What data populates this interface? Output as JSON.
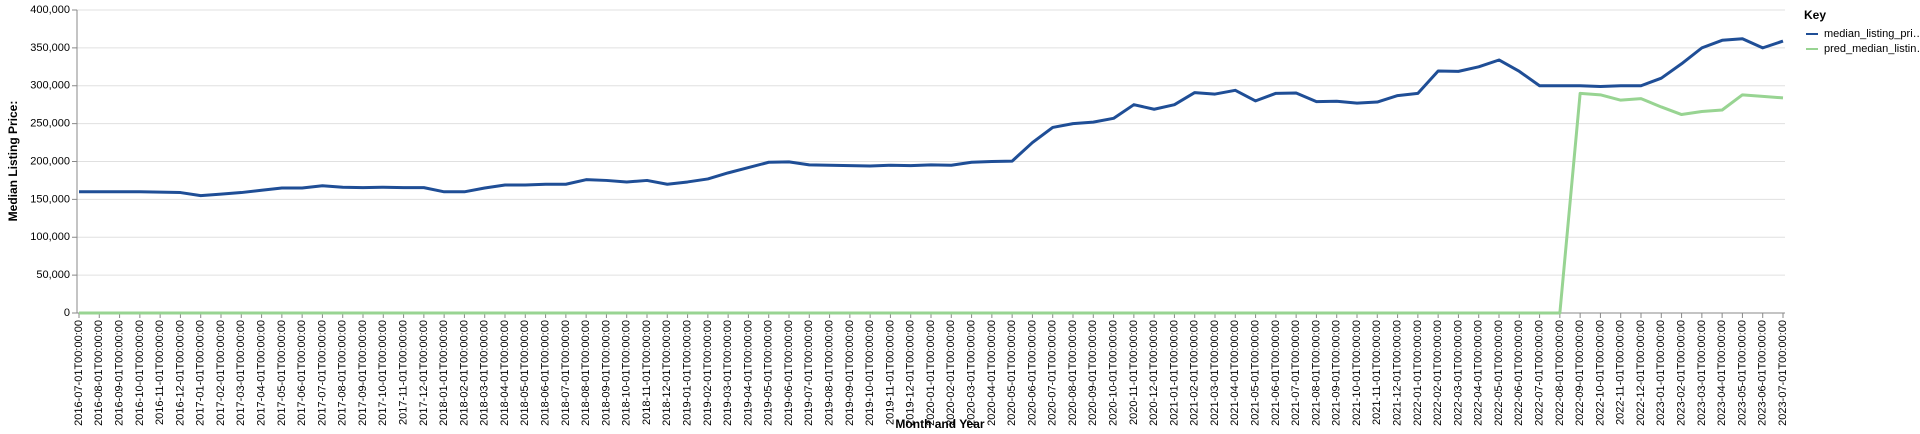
{
  "chart_data": {
    "type": "line",
    "x_label": "Month and Year",
    "y_label": "Median Listing Price:",
    "legend_title": "Key",
    "legend": "right",
    "grid": true,
    "categories": [
      "2016-07-01T00:00:00",
      "2016-08-01T00:00:00",
      "2016-09-01T00:00:00",
      "2016-10-01T00:00:00",
      "2016-11-01T00:00:00",
      "2016-12-01T00:00:00",
      "2017-01-01T00:00:00",
      "2017-02-01T00:00:00",
      "2017-03-01T00:00:00",
      "2017-04-01T00:00:00",
      "2017-05-01T00:00:00",
      "2017-06-01T00:00:00",
      "2017-07-01T00:00:00",
      "2017-08-01T00:00:00",
      "2017-09-01T00:00:00",
      "2017-10-01T00:00:00",
      "2017-11-01T00:00:00",
      "2017-12-01T00:00:00",
      "2018-01-01T00:00:00",
      "2018-02-01T00:00:00",
      "2018-03-01T00:00:00",
      "2018-04-01T00:00:00",
      "2018-05-01T00:00:00",
      "2018-06-01T00:00:00",
      "2018-07-01T00:00:00",
      "2018-08-01T00:00:00",
      "2018-09-01T00:00:00",
      "2018-10-01T00:00:00",
      "2018-11-01T00:00:00",
      "2018-12-01T00:00:00",
      "2019-01-01T00:00:00",
      "2019-02-01T00:00:00",
      "2019-03-01T00:00:00",
      "2019-04-01T00:00:00",
      "2019-05-01T00:00:00",
      "2019-06-01T00:00:00",
      "2019-07-01T00:00:00",
      "2019-08-01T00:00:00",
      "2019-09-01T00:00:00",
      "2019-10-01T00:00:00",
      "2019-11-01T00:00:00",
      "2019-12-01T00:00:00",
      "2020-01-01T00:00:00",
      "2020-02-01T00:00:00",
      "2020-03-01T00:00:00",
      "2020-04-01T00:00:00",
      "2020-05-01T00:00:00",
      "2020-06-01T00:00:00",
      "2020-07-01T00:00:00",
      "2020-08-01T00:00:00",
      "2020-09-01T00:00:00",
      "2020-10-01T00:00:00",
      "2020-11-01T00:00:00",
      "2020-12-01T00:00:00",
      "2021-01-01T00:00:00",
      "2021-02-01T00:00:00",
      "2021-03-01T00:00:00",
      "2021-04-01T00:00:00",
      "2021-05-01T00:00:00",
      "2021-06-01T00:00:00",
      "2021-07-01T00:00:00",
      "2021-08-01T00:00:00",
      "2021-09-01T00:00:00",
      "2021-10-01T00:00:00",
      "2021-11-01T00:00:00",
      "2021-12-01T00:00:00",
      "2022-01-01T00:00:00",
      "2022-02-01T00:00:00",
      "2022-03-01T00:00:00",
      "2022-04-01T00:00:00",
      "2022-05-01T00:00:00",
      "2022-06-01T00:00:00",
      "2022-07-01T00:00:00",
      "2022-08-01T00:00:00",
      "2022-09-01T00:00:00",
      "2022-10-01T00:00:00",
      "2022-11-01T00:00:00",
      "2022-12-01T00:00:00",
      "2023-01-01T00:00:00",
      "2023-02-01T00:00:00",
      "2023-03-01T00:00:00",
      "2023-04-01T00:00:00",
      "2023-05-01T00:00:00",
      "2023-06-01T00:00:00",
      "2023-07-01T00:00:00"
    ],
    "series": [
      {
        "name": "median_listing_pri…",
        "color": "#1f4e96",
        "values": [
          160000,
          160000,
          160000,
          160000,
          159500,
          159000,
          155000,
          157000,
          159000,
          162000,
          165000,
          165000,
          168000,
          166000,
          165500,
          166000,
          165500,
          165500,
          160000,
          160000,
          165000,
          169000,
          169000,
          170000,
          170000,
          176000,
          175000,
          173000,
          175000,
          170000,
          173000,
          177000,
          185000,
          192000,
          199000,
          199500,
          195500,
          195000,
          194500,
          194000,
          195000,
          194500,
          195500,
          195000,
          199000,
          200000,
          200500,
          225000,
          245000,
          250000,
          252000,
          257000,
          275000,
          269000,
          275000,
          291000,
          289000,
          294000,
          280000,
          290000,
          290500,
          279000,
          279500,
          277000,
          278500,
          287000,
          290000,
          319500,
          319000,
          325000,
          334000,
          319000,
          300000,
          300000,
          300000,
          299000,
          300000,
          300000,
          310000,
          329000,
          350000,
          360000,
          362000,
          350000,
          359000
        ]
      },
      {
        "name": "pred_median_listin…",
        "color": "#98d492",
        "values": [
          0,
          0,
          0,
          0,
          0,
          0,
          0,
          0,
          0,
          0,
          0,
          0,
          0,
          0,
          0,
          0,
          0,
          0,
          0,
          0,
          0,
          0,
          0,
          0,
          0,
          0,
          0,
          0,
          0,
          0,
          0,
          0,
          0,
          0,
          0,
          0,
          0,
          0,
          0,
          0,
          0,
          0,
          0,
          0,
          0,
          0,
          0,
          0,
          0,
          0,
          0,
          0,
          0,
          0,
          0,
          0,
          0,
          0,
          0,
          0,
          0,
          0,
          0,
          0,
          0,
          0,
          0,
          0,
          0,
          0,
          0,
          0,
          0,
          0,
          290000,
          288000,
          281000,
          283000,
          272000,
          262000,
          266000,
          268000,
          288000,
          286000,
          284000
        ]
      }
    ],
    "ylim": [
      0,
      400000
    ],
    "yticks": [
      0,
      {
        "value": 50000,
        "label": "50,000"
      },
      {
        "value": 100000,
        "label": "100,000"
      },
      {
        "value": 150000,
        "label": "150,000"
      },
      {
        "value": 200000,
        "label": "200,000"
      },
      {
        "value": 250000,
        "label": "250,000"
      },
      {
        "value": 300000,
        "label": "300,000"
      },
      {
        "value": 350000,
        "label": "350,000"
      },
      {
        "value": 400000,
        "label": "400,000"
      }
    ]
  }
}
